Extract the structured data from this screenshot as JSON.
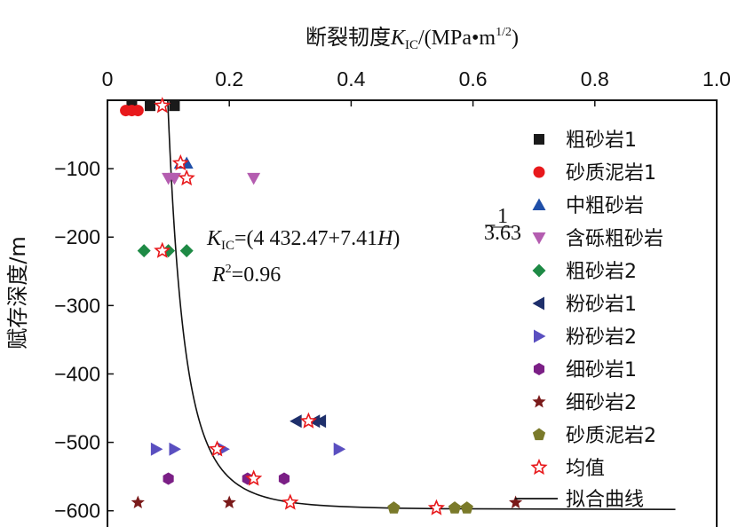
{
  "chart_data": {
    "type": "scatter",
    "xlabel_parts": {
      "pre": "断裂韧度",
      "k": "K",
      "sub": "IC",
      "post": "/(MPa•m",
      "sup": "1/2",
      "end": ")"
    },
    "ylabel": "赋存深度/m",
    "x_axis_position": "top",
    "xlim": [
      0,
      1.0
    ],
    "ylim": [
      -625,
      0
    ],
    "xticks": [
      "0",
      "0.2",
      "0.4",
      "0.6",
      "0.8",
      "1.0"
    ],
    "xtick_values": [
      0,
      0.2,
      0.4,
      0.6,
      0.8,
      1.0
    ],
    "yticks": [
      "−100",
      "−200",
      "−300",
      "−400",
      "−500",
      "−600"
    ],
    "ytick_values": [
      -100,
      -200,
      -300,
      -400,
      -500,
      -600
    ],
    "grid": false,
    "legend_position": "right",
    "equation": {
      "line1_prefix": "K",
      "line1_sub": "IC",
      "line1_body": "=(4 432.47+7.41H)",
      "exp_num": "1",
      "exp_den": "3.63",
      "exp_sign": "−",
      "line2_r": "R",
      "line2_sup": "2",
      "line2_body": "=0.96"
    },
    "series": [
      {
        "name": "粗砂岩1",
        "marker": "square",
        "color": "#1a1a1a",
        "points": [
          [
            0.04,
            -8
          ],
          [
            0.07,
            -8
          ],
          [
            0.11,
            -8
          ]
        ]
      },
      {
        "name": "砂质泥岩1",
        "marker": "circle",
        "color": "#e8191c",
        "points": [
          [
            0.03,
            -15
          ],
          [
            0.04,
            -15
          ],
          [
            0.05,
            -15
          ]
        ]
      },
      {
        "name": "中粗砂岩",
        "marker": "triangle-up",
        "color": "#1f4fa8",
        "points": [
          [
            0.12,
            -92
          ],
          [
            0.13,
            -92
          ]
        ]
      },
      {
        "name": "含砾粗砂岩",
        "marker": "triangle-down",
        "color": "#b45db0",
        "points": [
          [
            0.1,
            -114
          ],
          [
            0.11,
            -114
          ],
          [
            0.24,
            -114
          ]
        ]
      },
      {
        "name": "粗砂岩2",
        "marker": "diamond",
        "color": "#1e8a45",
        "points": [
          [
            0.06,
            -220
          ],
          [
            0.1,
            -220
          ],
          [
            0.13,
            -220
          ]
        ]
      },
      {
        "name": "粉砂岩1",
        "marker": "triangle-left",
        "color": "#1e2f6b",
        "points": [
          [
            0.31,
            -469
          ],
          [
            0.34,
            -469
          ],
          [
            0.35,
            -469
          ]
        ]
      },
      {
        "name": "粉砂岩2",
        "marker": "triangle-right",
        "color": "#5a4fc0",
        "points": [
          [
            0.08,
            -510
          ],
          [
            0.11,
            -510
          ],
          [
            0.19,
            -510
          ],
          [
            0.38,
            -510
          ]
        ]
      },
      {
        "name": "细砂岩1",
        "marker": "hexagon",
        "color": "#7b1f86",
        "points": [
          [
            0.1,
            -553
          ],
          [
            0.23,
            -553
          ],
          [
            0.29,
            -553
          ]
        ]
      },
      {
        "name": "细砂岩2",
        "marker": "star",
        "color": "#7a1a1a",
        "points": [
          [
            0.05,
            -588
          ],
          [
            0.2,
            -588
          ],
          [
            0.67,
            -588
          ]
        ]
      },
      {
        "name": "砂质泥岩2",
        "marker": "pentagon",
        "color": "#7a7a2a",
        "points": [
          [
            0.47,
            -596
          ],
          [
            0.57,
            -596
          ],
          [
            0.59,
            -596
          ]
        ]
      },
      {
        "name": "均值",
        "marker": "star-open",
        "color": "#e8191c",
        "points": [
          [
            0.09,
            -8
          ],
          [
            0.12,
            -92
          ],
          [
            0.13,
            -114
          ],
          [
            0.09,
            -220
          ],
          [
            0.33,
            -469
          ],
          [
            0.18,
            -510
          ],
          [
            0.24,
            -553
          ],
          [
            0.3,
            -588
          ],
          [
            0.54,
            -596
          ]
        ]
      }
    ],
    "fit_curve": {
      "name": "拟合曲线",
      "color": "#111111",
      "a": 4432.47,
      "b": 7.41,
      "n": 3.63
    }
  }
}
